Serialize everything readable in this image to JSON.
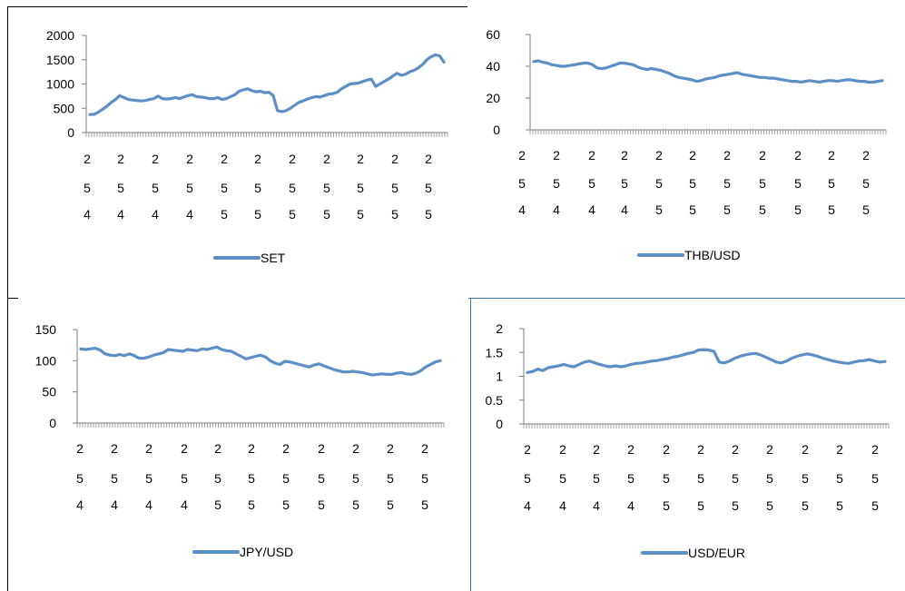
{
  "chart_data": [
    {
      "type": "line",
      "ylim": [
        0,
        2000
      ],
      "yticks": [
        "0",
        "500",
        "1000",
        "1500",
        "2000"
      ],
      "xtick_labels": [
        "254",
        "254",
        "254",
        "254",
        "255",
        "255",
        "255",
        "255",
        "255",
        "255",
        "255"
      ],
      "legend": "bottom",
      "series": [
        {
          "name": "SET",
          "color": "#5b8fc6",
          "values": [
            370,
            375,
            420,
            480,
            540,
            620,
            680,
            760,
            720,
            680,
            670,
            660,
            650,
            660,
            680,
            700,
            750,
            700,
            690,
            700,
            720,
            700,
            730,
            760,
            780,
            740,
            730,
            720,
            700,
            700,
            720,
            680,
            700,
            740,
            780,
            850,
            880,
            900,
            860,
            840,
            850,
            820,
            830,
            760,
            450,
            430,
            450,
            500,
            560,
            620,
            650,
            690,
            720,
            740,
            730,
            760,
            790,
            800,
            830,
            900,
            950,
            1000,
            1010,
            1020,
            1050,
            1080,
            1100,
            950,
            1000,
            1050,
            1100,
            1160,
            1220,
            1180,
            1200,
            1250,
            1280,
            1330,
            1400,
            1500,
            1560,
            1600,
            1580,
            1450
          ]
        }
      ]
    },
    {
      "type": "line",
      "ylim": [
        0,
        60
      ],
      "yticks": [
        "0",
        "20",
        "40",
        "60"
      ],
      "xtick_labels": [
        "254",
        "254",
        "254",
        "254",
        "255",
        "255",
        "255",
        "255",
        "255",
        "255",
        "255"
      ],
      "legend": "bottom",
      "series": [
        {
          "name": "THB/USD",
          "color": "#5b8fc6",
          "values": [
            43,
            43.5,
            42.5,
            42,
            41,
            40.5,
            40,
            40,
            40.5,
            41,
            41.5,
            42,
            42,
            41,
            39,
            38.5,
            39,
            40,
            41,
            42,
            42,
            41.5,
            41,
            39.5,
            38.5,
            38,
            38.5,
            38,
            37.5,
            36.5,
            35.5,
            34,
            33,
            32.5,
            32,
            31.5,
            30.5,
            31,
            32,
            32.5,
            33,
            34,
            34.5,
            35,
            35.5,
            36,
            35,
            34.5,
            34,
            33.5,
            33,
            33,
            32.5,
            32.5,
            32,
            31.5,
            31,
            30.5,
            30.5,
            30,
            30.5,
            31,
            30.5,
            30,
            30.5,
            31,
            31,
            30.5,
            31,
            31.5,
            31.5,
            31,
            30.5,
            30.5,
            30,
            30,
            30.5,
            31
          ]
        }
      ]
    },
    {
      "type": "line",
      "ylim": [
        0,
        150
      ],
      "yticks": [
        "0",
        "50",
        "100",
        "150"
      ],
      "xtick_labels": [
        "254",
        "254",
        "254",
        "254",
        "255",
        "255",
        "255",
        "255",
        "255",
        "255",
        "255"
      ],
      "legend": "bottom",
      "series": [
        {
          "name": "JPY/USD",
          "color": "#5b8fc6",
          "values": [
            119,
            118,
            119,
            120,
            117,
            111,
            109,
            108,
            110,
            108,
            111,
            108,
            104,
            104,
            106,
            109,
            111,
            113,
            118,
            117,
            116,
            115,
            118,
            117,
            116,
            119,
            118,
            120,
            122,
            118,
            116,
            115,
            111,
            107,
            103,
            105,
            107,
            109,
            106,
            100,
            96,
            94,
            99,
            98,
            96,
            94,
            92,
            90,
            93,
            95,
            92,
            89,
            86,
            84,
            82,
            82,
            83,
            82,
            81,
            79,
            77,
            78,
            79,
            78,
            78,
            80,
            81,
            79,
            78,
            80,
            84,
            90,
            94,
            98,
            100
          ]
        }
      ]
    },
    {
      "type": "line",
      "ylim": [
        0,
        2
      ],
      "yticks": [
        "0",
        "0.5",
        "1",
        "1.5",
        "2"
      ],
      "xtick_labels": [
        "254",
        "254",
        "254",
        "254",
        "255",
        "255",
        "255",
        "255",
        "255",
        "255",
        "255"
      ],
      "legend": "bottom",
      "series": [
        {
          "name": "USD/EUR",
          "color": "#5b8fc6",
          "values": [
            1.08,
            1.1,
            1.15,
            1.12,
            1.18,
            1.2,
            1.22,
            1.25,
            1.22,
            1.2,
            1.25,
            1.3,
            1.32,
            1.28,
            1.25,
            1.22,
            1.2,
            1.22,
            1.2,
            1.22,
            1.25,
            1.27,
            1.28,
            1.3,
            1.32,
            1.33,
            1.35,
            1.37,
            1.4,
            1.42,
            1.45,
            1.48,
            1.5,
            1.55,
            1.56,
            1.55,
            1.52,
            1.3,
            1.28,
            1.32,
            1.38,
            1.42,
            1.45,
            1.47,
            1.48,
            1.45,
            1.4,
            1.35,
            1.3,
            1.28,
            1.32,
            1.38,
            1.42,
            1.45,
            1.47,
            1.45,
            1.42,
            1.38,
            1.35,
            1.32,
            1.3,
            1.28,
            1.27,
            1.3,
            1.32,
            1.33,
            1.35,
            1.32,
            1.3,
            1.31
          ]
        }
      ]
    }
  ]
}
